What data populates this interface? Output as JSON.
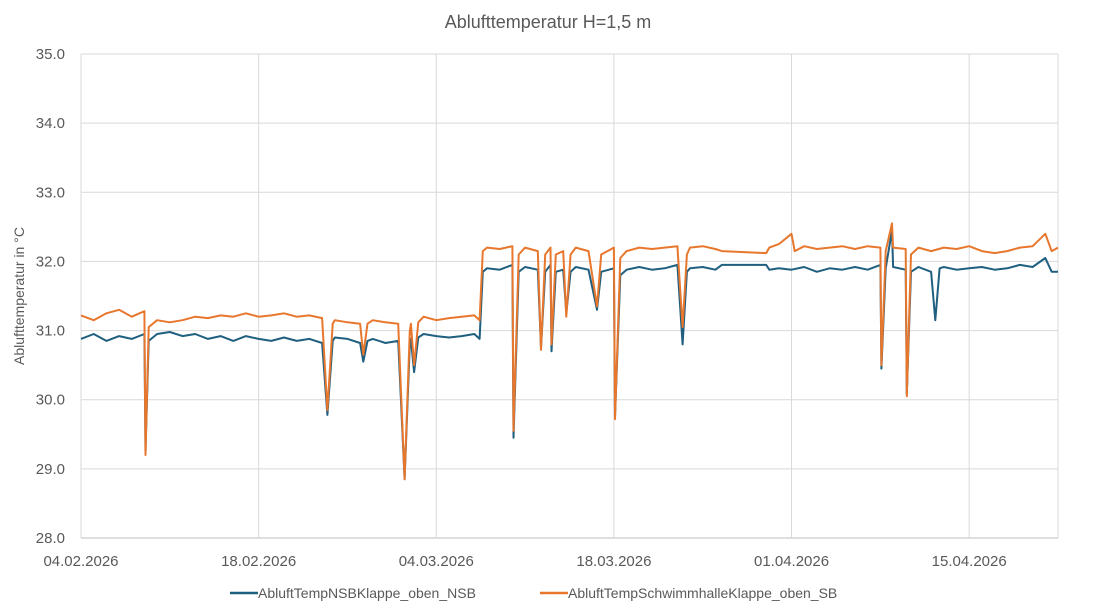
{
  "chart_data": {
    "type": "line",
    "title": "Ablufttemperatur H=1,5 m",
    "xlabel": "",
    "ylabel": "Ablufttemperatur in °C",
    "ylim": [
      28.0,
      35.0
    ],
    "yticks": [
      "28.0",
      "29.0",
      "30.0",
      "31.0",
      "32.0",
      "33.0",
      "34.0",
      "35.0"
    ],
    "xlim": [
      "2026-02-04",
      "2026-04-22"
    ],
    "xticks": [
      {
        "date": "2026-02-04",
        "label": "04.02.2026"
      },
      {
        "date": "2026-02-18",
        "label": "18.02.2026"
      },
      {
        "date": "2026-03-04",
        "label": "04.03.2026"
      },
      {
        "date": "2026-03-18",
        "label": "18.03.2026"
      },
      {
        "date": "2026-04-01",
        "label": "01.04.2026"
      },
      {
        "date": "2026-04-15",
        "label": "15.04.2026"
      }
    ],
    "grid": true,
    "legend_position": "bottom",
    "series": [
      {
        "name": "AbluftTempNSBKlappe_oben_NSB",
        "color": "#1f5f7f",
        "points": [
          [
            "2026-02-04",
            30.88
          ],
          [
            "2026-02-05",
            30.95
          ],
          [
            "2026-02-06",
            30.85
          ],
          [
            "2026-02-07",
            30.92
          ],
          [
            "2026-02-08",
            30.88
          ],
          [
            "2026-02-09",
            30.95
          ],
          [
            "2026-02-09T02",
            29.25
          ],
          [
            "2026-02-09T08",
            30.85
          ],
          [
            "2026-02-10",
            30.95
          ],
          [
            "2026-02-11",
            30.98
          ],
          [
            "2026-02-12",
            30.92
          ],
          [
            "2026-02-13",
            30.95
          ],
          [
            "2026-02-14",
            30.88
          ],
          [
            "2026-02-15",
            30.92
          ],
          [
            "2026-02-16",
            30.85
          ],
          [
            "2026-02-17",
            30.92
          ],
          [
            "2026-02-18",
            30.88
          ],
          [
            "2026-02-19",
            30.85
          ],
          [
            "2026-02-20",
            30.9
          ],
          [
            "2026-02-21",
            30.85
          ],
          [
            "2026-02-22",
            30.88
          ],
          [
            "2026-02-23",
            30.82
          ],
          [
            "2026-02-23T10",
            29.78
          ],
          [
            "2026-02-23T20",
            30.85
          ],
          [
            "2026-02-24",
            30.9
          ],
          [
            "2026-02-25",
            30.88
          ],
          [
            "2026-02-26",
            30.82
          ],
          [
            "2026-02-26T06",
            30.55
          ],
          [
            "2026-02-26T14",
            30.85
          ],
          [
            "2026-02-27",
            30.88
          ],
          [
            "2026-02-28",
            30.82
          ],
          [
            "2026-03-01",
            30.85
          ],
          [
            "2026-03-01T12",
            28.85
          ],
          [
            "2026-03-01T22",
            30.8
          ],
          [
            "2026-03-02",
            30.88
          ],
          [
            "2026-03-02T06",
            30.4
          ],
          [
            "2026-03-02T14",
            30.9
          ],
          [
            "2026-03-03",
            30.95
          ],
          [
            "2026-03-04",
            30.92
          ],
          [
            "2026-03-05",
            30.9
          ],
          [
            "2026-03-06",
            30.92
          ],
          [
            "2026-03-07",
            30.95
          ],
          [
            "2026-03-07T10",
            30.88
          ],
          [
            "2026-03-07T16",
            31.85
          ],
          [
            "2026-03-08",
            31.9
          ],
          [
            "2026-03-09",
            31.88
          ],
          [
            "2026-03-10",
            31.95
          ],
          [
            "2026-03-10T02",
            29.45
          ],
          [
            "2026-03-10T12",
            31.85
          ],
          [
            "2026-03-11",
            31.92
          ],
          [
            "2026-03-12",
            31.88
          ],
          [
            "2026-03-12T06",
            30.75
          ],
          [
            "2026-03-12T14",
            31.85
          ],
          [
            "2026-03-13",
            31.95
          ],
          [
            "2026-03-13T02",
            30.7
          ],
          [
            "2026-03-13T10",
            31.85
          ],
          [
            "2026-03-14",
            31.88
          ],
          [
            "2026-03-14T06",
            31.25
          ],
          [
            "2026-03-14T14",
            31.85
          ],
          [
            "2026-03-15",
            31.92
          ],
          [
            "2026-03-16",
            31.88
          ],
          [
            "2026-03-16T16",
            31.3
          ],
          [
            "2026-03-17",
            31.85
          ],
          [
            "2026-03-18",
            31.9
          ],
          [
            "2026-03-18T02",
            29.75
          ],
          [
            "2026-03-18T12",
            31.8
          ],
          [
            "2026-03-19",
            31.88
          ],
          [
            "2026-03-20",
            31.92
          ],
          [
            "2026-03-21",
            31.88
          ],
          [
            "2026-03-22",
            31.9
          ],
          [
            "2026-03-23",
            31.95
          ],
          [
            "2026-03-23T10",
            30.8
          ],
          [
            "2026-03-23T18",
            31.85
          ],
          [
            "2026-03-24",
            31.9
          ],
          [
            "2026-03-25",
            31.92
          ],
          [
            "2026-03-26",
            31.88
          ],
          [
            "2026-03-26T12",
            31.95
          ],
          [
            "2026-03-30",
            31.95
          ],
          [
            "2026-03-30T06",
            31.88
          ],
          [
            "2026-03-31",
            31.9
          ],
          [
            "2026-04-01",
            31.88
          ],
          [
            "2026-04-02",
            31.92
          ],
          [
            "2026-04-03",
            31.85
          ],
          [
            "2026-04-04",
            31.9
          ],
          [
            "2026-04-05",
            31.88
          ],
          [
            "2026-04-06",
            31.92
          ],
          [
            "2026-04-07",
            31.88
          ],
          [
            "2026-04-08",
            31.95
          ],
          [
            "2026-04-08T02",
            30.45
          ],
          [
            "2026-04-08T10",
            31.9
          ],
          [
            "2026-04-08T22",
            32.45
          ],
          [
            "2026-04-09",
            31.92
          ],
          [
            "2026-04-10",
            31.88
          ],
          [
            "2026-04-10T02",
            30.08
          ],
          [
            "2026-04-10T10",
            31.85
          ],
          [
            "2026-04-11",
            31.92
          ],
          [
            "2026-04-12",
            31.85
          ],
          [
            "2026-04-12T08",
            31.15
          ],
          [
            "2026-04-12T16",
            31.9
          ],
          [
            "2026-04-13",
            31.92
          ],
          [
            "2026-04-14",
            31.88
          ],
          [
            "2026-04-15",
            31.9
          ],
          [
            "2026-04-16",
            31.92
          ],
          [
            "2026-04-17",
            31.88
          ],
          [
            "2026-04-18",
            31.9
          ],
          [
            "2026-04-19",
            31.95
          ],
          [
            "2026-04-20",
            31.92
          ],
          [
            "2026-04-21",
            32.05
          ],
          [
            "2026-04-21T12",
            31.85
          ],
          [
            "2026-04-22",
            31.85
          ]
        ]
      },
      {
        "name": "AbluftTempSchwimmhalleKlappe_oben_SB",
        "color": "#e8772e",
        "points": [
          [
            "2026-02-04",
            31.22
          ],
          [
            "2026-02-05",
            31.15
          ],
          [
            "2026-02-06",
            31.25
          ],
          [
            "2026-02-07",
            31.3
          ],
          [
            "2026-02-08",
            31.2
          ],
          [
            "2026-02-09",
            31.28
          ],
          [
            "2026-02-09T02",
            29.2
          ],
          [
            "2026-02-09T08",
            31.05
          ],
          [
            "2026-02-10",
            31.15
          ],
          [
            "2026-02-11",
            31.12
          ],
          [
            "2026-02-12",
            31.15
          ],
          [
            "2026-02-13",
            31.2
          ],
          [
            "2026-02-14",
            31.18
          ],
          [
            "2026-02-15",
            31.22
          ],
          [
            "2026-02-16",
            31.2
          ],
          [
            "2026-02-17",
            31.25
          ],
          [
            "2026-02-18",
            31.2
          ],
          [
            "2026-02-19",
            31.22
          ],
          [
            "2026-02-20",
            31.25
          ],
          [
            "2026-02-21",
            31.2
          ],
          [
            "2026-02-22",
            31.22
          ],
          [
            "2026-02-23",
            31.18
          ],
          [
            "2026-02-23T10",
            29.85
          ],
          [
            "2026-02-23T20",
            31.1
          ],
          [
            "2026-02-24",
            31.15
          ],
          [
            "2026-02-25",
            31.12
          ],
          [
            "2026-02-26",
            31.1
          ],
          [
            "2026-02-26T06",
            30.65
          ],
          [
            "2026-02-26T14",
            31.1
          ],
          [
            "2026-02-27",
            31.15
          ],
          [
            "2026-02-28",
            31.12
          ],
          [
            "2026-03-01",
            31.1
          ],
          [
            "2026-03-01T12",
            28.85
          ],
          [
            "2026-03-01T22",
            31.0
          ],
          [
            "2026-03-02",
            31.1
          ],
          [
            "2026-03-02T06",
            30.5
          ],
          [
            "2026-03-02T14",
            31.12
          ],
          [
            "2026-03-03",
            31.2
          ],
          [
            "2026-03-04",
            31.15
          ],
          [
            "2026-03-05",
            31.18
          ],
          [
            "2026-03-06",
            31.2
          ],
          [
            "2026-03-07",
            31.22
          ],
          [
            "2026-03-07T10",
            31.15
          ],
          [
            "2026-03-07T16",
            32.15
          ],
          [
            "2026-03-08",
            32.2
          ],
          [
            "2026-03-09",
            32.18
          ],
          [
            "2026-03-10",
            32.22
          ],
          [
            "2026-03-10T02",
            29.55
          ],
          [
            "2026-03-10T12",
            32.1
          ],
          [
            "2026-03-11",
            32.2
          ],
          [
            "2026-03-12",
            32.15
          ],
          [
            "2026-03-12T06",
            30.72
          ],
          [
            "2026-03-12T14",
            32.1
          ],
          [
            "2026-03-13",
            32.2
          ],
          [
            "2026-03-13T02",
            30.8
          ],
          [
            "2026-03-13T10",
            32.1
          ],
          [
            "2026-03-14",
            32.15
          ],
          [
            "2026-03-14T06",
            31.2
          ],
          [
            "2026-03-14T14",
            32.1
          ],
          [
            "2026-03-15",
            32.2
          ],
          [
            "2026-03-16",
            32.15
          ],
          [
            "2026-03-16T16",
            31.35
          ],
          [
            "2026-03-17",
            32.1
          ],
          [
            "2026-03-18",
            32.2
          ],
          [
            "2026-03-18T02",
            29.72
          ],
          [
            "2026-03-18T12",
            32.05
          ],
          [
            "2026-03-19",
            32.15
          ],
          [
            "2026-03-20",
            32.2
          ],
          [
            "2026-03-21",
            32.18
          ],
          [
            "2026-03-22",
            32.2
          ],
          [
            "2026-03-23",
            32.22
          ],
          [
            "2026-03-23T10",
            31.05
          ],
          [
            "2026-03-23T18",
            32.1
          ],
          [
            "2026-03-24",
            32.2
          ],
          [
            "2026-03-25",
            32.22
          ],
          [
            "2026-03-26",
            32.18
          ],
          [
            "2026-03-26T12",
            32.15
          ],
          [
            "2026-03-30",
            32.12
          ],
          [
            "2026-03-30T06",
            32.2
          ],
          [
            "2026-03-31",
            32.25
          ],
          [
            "2026-04-01",
            32.4
          ],
          [
            "2026-04-01T06",
            32.15
          ],
          [
            "2026-04-02",
            32.22
          ],
          [
            "2026-04-03",
            32.18
          ],
          [
            "2026-04-04",
            32.2
          ],
          [
            "2026-04-05",
            32.22
          ],
          [
            "2026-04-06",
            32.18
          ],
          [
            "2026-04-07",
            32.22
          ],
          [
            "2026-04-08",
            32.2
          ],
          [
            "2026-04-08T02",
            30.5
          ],
          [
            "2026-04-08T10",
            32.15
          ],
          [
            "2026-04-08T22",
            32.55
          ],
          [
            "2026-04-09",
            32.2
          ],
          [
            "2026-04-10",
            32.18
          ],
          [
            "2026-04-10T02",
            30.05
          ],
          [
            "2026-04-10T10",
            32.1
          ],
          [
            "2026-04-11",
            32.2
          ],
          [
            "2026-04-12",
            32.15
          ],
          [
            "2026-04-13",
            32.2
          ],
          [
            "2026-04-14",
            32.18
          ],
          [
            "2026-04-15",
            32.22
          ],
          [
            "2026-04-16",
            32.15
          ],
          [
            "2026-04-17",
            32.12
          ],
          [
            "2026-04-18",
            32.15
          ],
          [
            "2026-04-19",
            32.2
          ],
          [
            "2026-04-20",
            32.22
          ],
          [
            "2026-04-21",
            32.4
          ],
          [
            "2026-04-21T12",
            32.15
          ],
          [
            "2026-04-22",
            32.2
          ]
        ]
      }
    ]
  }
}
